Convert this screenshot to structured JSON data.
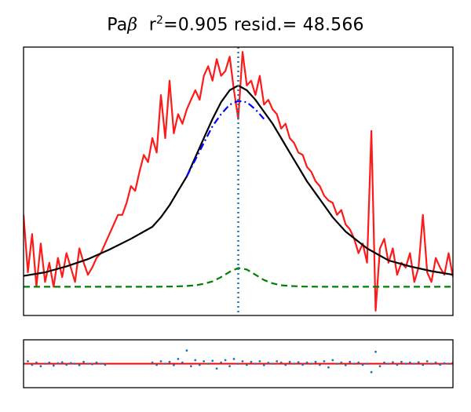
{
  "chart_data": [
    {
      "type": "line",
      "title_parts": {
        "line": "Pa",
        "line_symbol": "β",
        "r2_label": "r",
        "r2_exp": "2",
        "r2_value": "=0.905",
        "resid_text": " resid.= 48.566"
      },
      "xlim": [
        0,
        1
      ],
      "ylim": [
        -0.12,
        1.0
      ],
      "xticks": "none",
      "yticks": "none",
      "grid": false,
      "legend": "none",
      "colors": {
        "data": "#ff1a1a",
        "total_fit": "#000000",
        "broad": "#0000ff",
        "narrow": "#008000",
        "center_line": "#1f77b4"
      },
      "center_x": 0.5,
      "series": [
        {
          "role": "observed",
          "style": "solid",
          "color": "#ff1a1a",
          "x": [
            0.0,
            0.01,
            0.02,
            0.03,
            0.04,
            0.05,
            0.06,
            0.07,
            0.08,
            0.09,
            0.1,
            0.11,
            0.12,
            0.13,
            0.14,
            0.15,
            0.16,
            0.17,
            0.18,
            0.19,
            0.2,
            0.21,
            0.22,
            0.23,
            0.24,
            0.25,
            0.26,
            0.27,
            0.28,
            0.29,
            0.3,
            0.31,
            0.32,
            0.33,
            0.34,
            0.35,
            0.36,
            0.37,
            0.38,
            0.39,
            0.4,
            0.41,
            0.42,
            0.43,
            0.44,
            0.45,
            0.46,
            0.47,
            0.48,
            0.49,
            0.5,
            0.51,
            0.52,
            0.53,
            0.54,
            0.55,
            0.56,
            0.57,
            0.58,
            0.59,
            0.6,
            0.61,
            0.62,
            0.63,
            0.64,
            0.65,
            0.66,
            0.67,
            0.68,
            0.69,
            0.7,
            0.71,
            0.72,
            0.73,
            0.74,
            0.75,
            0.76,
            0.77,
            0.78,
            0.79,
            0.8,
            0.81,
            0.82,
            0.83,
            0.84,
            0.85,
            0.86,
            0.87,
            0.88,
            0.89,
            0.9,
            0.91,
            0.92,
            0.93,
            0.94,
            0.95,
            0.96,
            0.97,
            0.98,
            0.99,
            1.0
          ],
          "y": [
            0.3,
            0.06,
            0.22,
            0.0,
            0.18,
            0.02,
            0.1,
            0.0,
            0.12,
            0.04,
            0.14,
            0.08,
            0.02,
            0.16,
            0.1,
            0.05,
            0.08,
            0.12,
            0.14,
            0.18,
            0.22,
            0.26,
            0.3,
            0.3,
            0.35,
            0.42,
            0.4,
            0.48,
            0.55,
            0.52,
            0.62,
            0.56,
            0.8,
            0.62,
            0.86,
            0.64,
            0.72,
            0.68,
            0.74,
            0.78,
            0.82,
            0.78,
            0.88,
            0.92,
            0.86,
            0.95,
            0.88,
            0.9,
            0.96,
            0.82,
            0.7,
            0.98,
            0.84,
            0.86,
            0.8,
            0.88,
            0.76,
            0.78,
            0.74,
            0.72,
            0.66,
            0.68,
            0.62,
            0.6,
            0.56,
            0.55,
            0.5,
            0.48,
            0.44,
            0.42,
            0.38,
            0.36,
            0.35,
            0.3,
            0.32,
            0.26,
            0.24,
            0.2,
            0.14,
            0.18,
            0.1,
            0.65,
            -0.1,
            0.16,
            0.2,
            0.1,
            0.16,
            0.05,
            0.1,
            0.08,
            0.14,
            0.02,
            0.08,
            0.3,
            0.06,
            0.02,
            0.12,
            0.08,
            0.05,
            0.14,
            0.04
          ]
        },
        {
          "role": "total fit",
          "style": "solid",
          "color": "#000000",
          "x": [
            0.0,
            0.05,
            0.1,
            0.15,
            0.2,
            0.25,
            0.3,
            0.32,
            0.34,
            0.36,
            0.38,
            0.4,
            0.42,
            0.44,
            0.46,
            0.48,
            0.5,
            0.52,
            0.54,
            0.56,
            0.58,
            0.6,
            0.62,
            0.64,
            0.66,
            0.68,
            0.7,
            0.72,
            0.75,
            0.8,
            0.85,
            0.9,
            0.95,
            1.0
          ],
          "y": [
            0.045,
            0.06,
            0.085,
            0.115,
            0.155,
            0.2,
            0.25,
            0.29,
            0.34,
            0.4,
            0.46,
            0.54,
            0.62,
            0.7,
            0.77,
            0.82,
            0.84,
            0.82,
            0.78,
            0.73,
            0.68,
            0.62,
            0.56,
            0.5,
            0.44,
            0.39,
            0.34,
            0.29,
            0.23,
            0.16,
            0.11,
            0.085,
            0.065,
            0.05
          ]
        },
        {
          "role": "broad component",
          "style": "dashdot",
          "color": "#0000ff",
          "x": [
            0.38,
            0.4,
            0.42,
            0.44,
            0.46,
            0.48,
            0.5,
            0.52,
            0.54,
            0.56
          ],
          "y": [
            0.46,
            0.53,
            0.6,
            0.67,
            0.72,
            0.76,
            0.775,
            0.77,
            0.74,
            0.7
          ]
        },
        {
          "role": "narrow component",
          "style": "dashed",
          "color": "#008000",
          "x": [
            0.0,
            0.1,
            0.2,
            0.3,
            0.35,
            0.38,
            0.4,
            0.42,
            0.44,
            0.46,
            0.48,
            0.5,
            0.52,
            0.54,
            0.56,
            0.58,
            0.6,
            0.62,
            0.65,
            0.7,
            0.8,
            0.9,
            1.0
          ],
          "y": [
            0.0,
            0.0,
            0.0,
            0.0,
            0.001,
            0.003,
            0.006,
            0.012,
            0.022,
            0.04,
            0.062,
            0.078,
            0.072,
            0.05,
            0.028,
            0.014,
            0.006,
            0.003,
            0.001,
            0.0,
            0.0,
            0.0,
            0.0
          ]
        }
      ]
    },
    {
      "type": "scatter",
      "title": "",
      "xticks": "none",
      "yticks": "none",
      "xlim": [
        0,
        1
      ],
      "ylim": [
        -1,
        1
      ],
      "colors": {
        "points": "#1f77b4",
        "zero_line": "#ff0000"
      },
      "x": [
        0.0,
        0.01,
        0.02,
        0.03,
        0.04,
        0.05,
        0.06,
        0.07,
        0.08,
        0.09,
        0.1,
        0.11,
        0.12,
        0.13,
        0.14,
        0.15,
        0.16,
        0.17,
        0.18,
        0.19,
        0.3,
        0.31,
        0.32,
        0.33,
        0.34,
        0.35,
        0.36,
        0.37,
        0.38,
        0.39,
        0.4,
        0.41,
        0.42,
        0.43,
        0.44,
        0.45,
        0.46,
        0.47,
        0.48,
        0.49,
        0.5,
        0.51,
        0.52,
        0.53,
        0.54,
        0.55,
        0.56,
        0.57,
        0.58,
        0.59,
        0.6,
        0.61,
        0.62,
        0.63,
        0.64,
        0.65,
        0.66,
        0.67,
        0.68,
        0.69,
        0.7,
        0.71,
        0.72,
        0.73,
        0.74,
        0.75,
        0.76,
        0.77,
        0.78,
        0.79,
        0.8,
        0.81,
        0.82,
        0.83,
        0.84,
        0.85,
        0.86,
        0.87,
        0.88,
        0.89,
        0.9,
        0.91,
        0.92,
        0.93,
        0.94,
        0.95,
        0.96,
        0.97,
        0.98,
        0.99,
        1.0
      ],
      "y": [
        0.0,
        0.1,
        -0.05,
        0.05,
        -0.1,
        0.0,
        0.05,
        -0.08,
        0.02,
        0.06,
        -0.04,
        0.03,
        0.0,
        -0.06,
        0.08,
        0.0,
        -0.02,
        0.05,
        0.0,
        -0.04,
        0.05,
        -0.05,
        0.1,
        0.0,
        0.08,
        -0.06,
        0.2,
        0.05,
        0.55,
        -0.1,
        0.15,
        -0.05,
        0.1,
        0.0,
        0.12,
        -0.2,
        0.05,
        0.15,
        -0.1,
        0.2,
        0.0,
        0.1,
        -0.05,
        0.08,
        0.0,
        0.1,
        -0.06,
        0.04,
        0.0,
        0.1,
        0.05,
        -0.05,
        0.08,
        0.0,
        0.06,
        -0.04,
        0.05,
        0.0,
        0.08,
        -0.05,
        0.1,
        -0.15,
        0.15,
        0.0,
        0.05,
        -0.06,
        0.08,
        0.0,
        0.05,
        -0.04,
        0.0,
        -0.35,
        0.5,
        -0.1,
        0.05,
        0.0,
        0.06,
        -0.04,
        0.08,
        0.0,
        0.05,
        0.0,
        0.06,
        -0.05,
        0.1,
        0.0,
        0.05,
        -0.04,
        0.02,
        0.0,
        0.05
      ]
    }
  ]
}
